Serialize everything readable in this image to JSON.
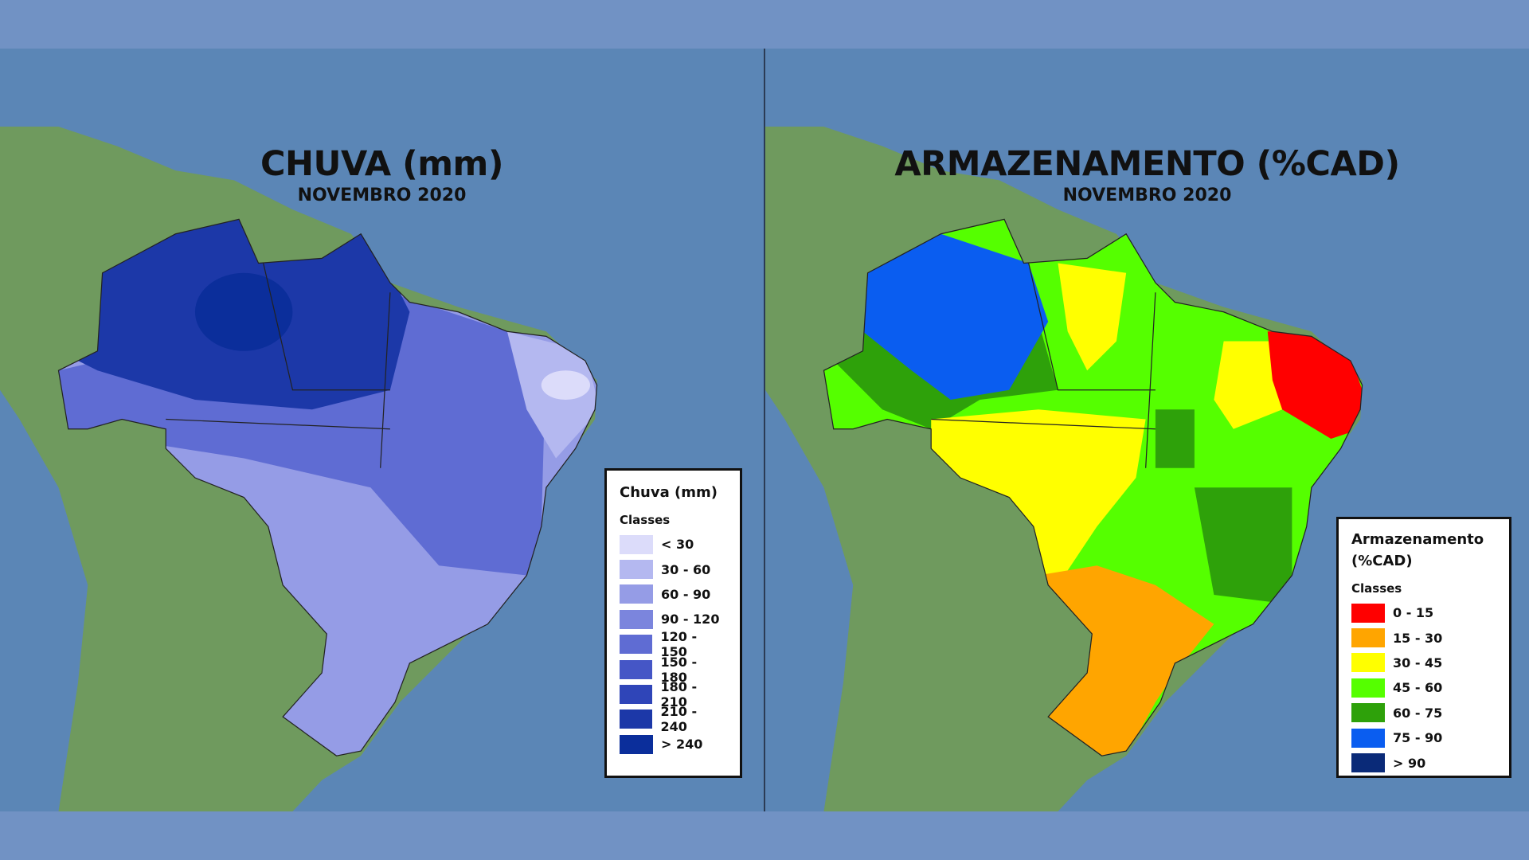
{
  "panels": [
    {
      "title": "CHUVA (mm)",
      "subtitle": "NOVEMBRO 2020",
      "legend": {
        "title": "Chuva (mm)",
        "classes_label": "Classes",
        "items": [
          {
            "label": "< 30",
            "color": "#dcdcfa"
          },
          {
            "label": "30 - 60",
            "color": "#b4b8f0"
          },
          {
            "label": "60 - 90",
            "color": "#959ce6"
          },
          {
            "label": "90 - 120",
            "color": "#7b85dd"
          },
          {
            "label": "120 - 150",
            "color": "#5f6cd3"
          },
          {
            "label": "150 - 180",
            "color": "#4556c6"
          },
          {
            "label": "180 - 210",
            "color": "#2f45b8"
          },
          {
            "label": "210 - 240",
            "color": "#1c38a8"
          },
          {
            "label": "> 240",
            "color": "#0b2e9b"
          }
        ]
      }
    },
    {
      "title": "ARMAZENAMENTO (%CAD)",
      "subtitle": "NOVEMBRO 2020",
      "legend": {
        "title": "Armazenamento (%CAD)",
        "classes_label": "Classes",
        "items": [
          {
            "label": "0 - 15",
            "color": "#ff0000"
          },
          {
            "label": "15 - 30",
            "color": "#ffa500"
          },
          {
            "label": "30 - 45",
            "color": "#ffff00"
          },
          {
            "label": "45 - 60",
            "color": "#55ff00"
          },
          {
            "label": "60 - 75",
            "color": "#2ea10a"
          },
          {
            "label": "75 - 90",
            "color": "#0a5df0"
          },
          {
            "label": "> 90",
            "color": "#0a2a78"
          }
        ]
      }
    }
  ]
}
